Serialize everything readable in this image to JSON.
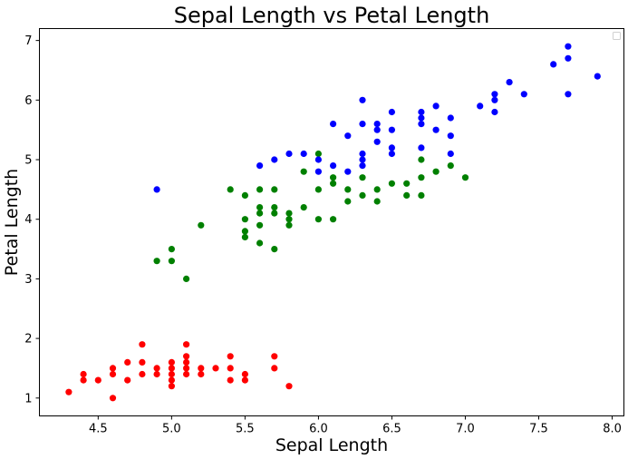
{
  "chart_data": {
    "type": "scatter",
    "title": "Sepal Length vs Petal Length",
    "xlabel": "Sepal Length",
    "ylabel": "Petal Length",
    "xlim": [
      4.1,
      8.08
    ],
    "ylim": [
      0.7,
      7.2
    ],
    "xticks": [
      "4.5",
      "5.0",
      "5.5",
      "6.0",
      "6.5",
      "7.0",
      "7.5",
      "8.0"
    ],
    "yticks": [
      "1",
      "2",
      "3",
      "4",
      "5",
      "6",
      "7"
    ],
    "grid": false,
    "legend": "top-right",
    "series": [
      {
        "color": "#ff0000",
        "points": [
          [
            4.3,
            1.1
          ],
          [
            4.4,
            1.3
          ],
          [
            4.4,
            1.4
          ],
          [
            4.5,
            1.3
          ],
          [
            4.6,
            1.0
          ],
          [
            4.6,
            1.4
          ],
          [
            4.6,
            1.5
          ],
          [
            4.7,
            1.3
          ],
          [
            4.7,
            1.6
          ],
          [
            4.8,
            1.4
          ],
          [
            4.8,
            1.6
          ],
          [
            4.8,
            1.9
          ],
          [
            4.9,
            1.4
          ],
          [
            4.9,
            1.5
          ],
          [
            5.0,
            1.2
          ],
          [
            5.0,
            1.3
          ],
          [
            5.0,
            1.4
          ],
          [
            5.0,
            1.5
          ],
          [
            5.0,
            1.6
          ],
          [
            5.1,
            1.4
          ],
          [
            5.1,
            1.5
          ],
          [
            5.1,
            1.6
          ],
          [
            5.1,
            1.7
          ],
          [
            5.1,
            1.9
          ],
          [
            5.2,
            1.4
          ],
          [
            5.2,
            1.5
          ],
          [
            5.3,
            1.5
          ],
          [
            5.4,
            1.3
          ],
          [
            5.4,
            1.5
          ],
          [
            5.4,
            1.7
          ],
          [
            5.5,
            1.3
          ],
          [
            5.5,
            1.4
          ],
          [
            5.7,
            1.5
          ],
          [
            5.7,
            1.7
          ],
          [
            5.8,
            1.2
          ]
        ]
      },
      {
        "color": "#008000",
        "points": [
          [
            4.9,
            3.3
          ],
          [
            5.0,
            3.3
          ],
          [
            5.0,
            3.5
          ],
          [
            5.1,
            3.0
          ],
          [
            5.2,
            3.9
          ],
          [
            5.4,
            4.5
          ],
          [
            5.5,
            3.7
          ],
          [
            5.5,
            3.8
          ],
          [
            5.5,
            4.0
          ],
          [
            5.5,
            4.4
          ],
          [
            5.6,
            3.6
          ],
          [
            5.6,
            3.9
          ],
          [
            5.6,
            4.1
          ],
          [
            5.6,
            4.2
          ],
          [
            5.6,
            4.5
          ],
          [
            5.7,
            3.5
          ],
          [
            5.7,
            4.1
          ],
          [
            5.7,
            4.2
          ],
          [
            5.7,
            4.5
          ],
          [
            5.8,
            3.9
          ],
          [
            5.8,
            4.0
          ],
          [
            5.8,
            4.1
          ],
          [
            5.9,
            4.2
          ],
          [
            5.9,
            4.8
          ],
          [
            6.0,
            4.0
          ],
          [
            6.0,
            4.5
          ],
          [
            6.0,
            5.1
          ],
          [
            6.1,
            4.0
          ],
          [
            6.1,
            4.6
          ],
          [
            6.1,
            4.7
          ],
          [
            6.2,
            4.3
          ],
          [
            6.2,
            4.5
          ],
          [
            6.3,
            4.4
          ],
          [
            6.3,
            4.7
          ],
          [
            6.4,
            4.3
          ],
          [
            6.4,
            4.5
          ],
          [
            6.5,
            4.6
          ],
          [
            6.6,
            4.4
          ],
          [
            6.6,
            4.6
          ],
          [
            6.7,
            4.4
          ],
          [
            6.7,
            4.7
          ],
          [
            6.7,
            5.0
          ],
          [
            6.8,
            4.8
          ],
          [
            6.9,
            4.9
          ],
          [
            7.0,
            4.7
          ]
        ]
      },
      {
        "color": "#0000ff",
        "points": [
          [
            4.9,
            4.5
          ],
          [
            5.6,
            4.9
          ],
          [
            5.7,
            5.0
          ],
          [
            5.8,
            5.1
          ],
          [
            5.9,
            5.1
          ],
          [
            6.0,
            4.8
          ],
          [
            6.0,
            5.0
          ],
          [
            6.1,
            4.9
          ],
          [
            6.1,
            5.6
          ],
          [
            6.2,
            4.8
          ],
          [
            6.2,
            5.4
          ],
          [
            6.3,
            4.9
          ],
          [
            6.3,
            5.0
          ],
          [
            6.3,
            5.1
          ],
          [
            6.3,
            5.6
          ],
          [
            6.3,
            6.0
          ],
          [
            6.4,
            5.3
          ],
          [
            6.4,
            5.5
          ],
          [
            6.4,
            5.6
          ],
          [
            6.5,
            5.1
          ],
          [
            6.5,
            5.2
          ],
          [
            6.5,
            5.5
          ],
          [
            6.5,
            5.8
          ],
          [
            6.7,
            5.2
          ],
          [
            6.7,
            5.6
          ],
          [
            6.7,
            5.7
          ],
          [
            6.7,
            5.8
          ],
          [
            6.8,
            5.5
          ],
          [
            6.8,
            5.9
          ],
          [
            6.9,
            5.1
          ],
          [
            6.9,
            5.4
          ],
          [
            6.9,
            5.7
          ],
          [
            7.1,
            5.9
          ],
          [
            7.2,
            5.8
          ],
          [
            7.2,
            6.0
          ],
          [
            7.2,
            6.1
          ],
          [
            7.3,
            6.3
          ],
          [
            7.4,
            6.1
          ],
          [
            7.6,
            6.6
          ],
          [
            7.7,
            6.1
          ],
          [
            7.7,
            6.7
          ],
          [
            7.7,
            6.9
          ],
          [
            7.9,
            6.4
          ]
        ]
      }
    ]
  }
}
